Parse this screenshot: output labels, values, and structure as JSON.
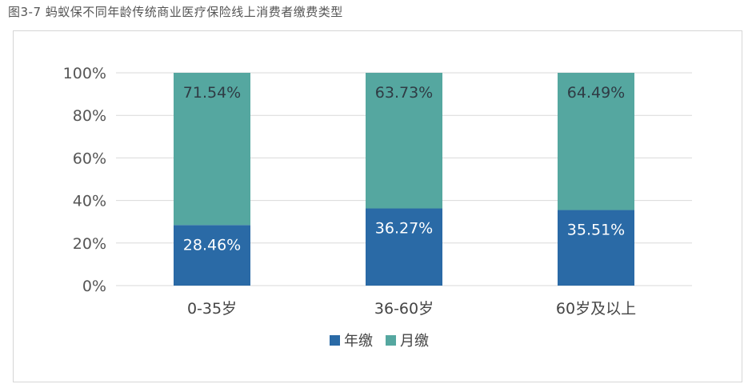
{
  "caption": "图3-7 蚂蚁保不同年龄传统商业医疗保险线上消费者缴费类型",
  "chart_data": {
    "type": "bar",
    "stacked": true,
    "percent": true,
    "categories": [
      "0-35岁",
      "36-60岁",
      "60岁及以上"
    ],
    "series": [
      {
        "name": "年缴",
        "values": [
          28.46,
          36.27,
          35.51
        ],
        "labels": [
          "28.46%",
          "36.27%",
          "35.51%"
        ],
        "color": "#2a6aa6"
      },
      {
        "name": "月缴",
        "values": [
          71.54,
          63.73,
          64.49
        ],
        "labels": [
          "71.54%",
          "63.73%",
          "64.49%"
        ],
        "color": "#55a7a0"
      }
    ],
    "ylim": [
      0,
      100
    ],
    "yticks": [
      "0%",
      "20%",
      "40%",
      "60%",
      "80%",
      "100%"
    ],
    "grid": true,
    "legend_position": "bottom"
  }
}
